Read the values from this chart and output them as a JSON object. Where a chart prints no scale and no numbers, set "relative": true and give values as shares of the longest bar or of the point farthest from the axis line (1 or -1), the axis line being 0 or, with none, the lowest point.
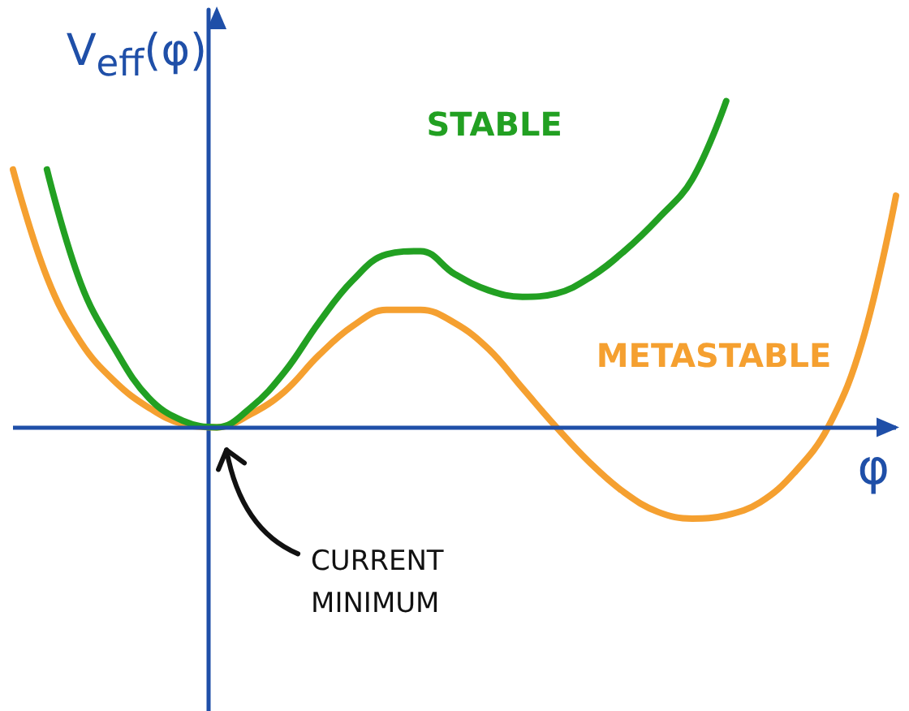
{
  "chart_data": {
    "type": "line",
    "relative": true,
    "xlabel": "φ",
    "ylabel": "V$_{eff}$(φ)",
    "categories": [
      null,
      null,
      null,
      null,
      null,
      null,
      null,
      null,
      null,
      null,
      null,
      null,
      null,
      null,
      null,
      null,
      null,
      null,
      null,
      null,
      null,
      null,
      null,
      null,
      null,
      null,
      null
    ],
    "series": [
      {
        "name": "METASTABLE",
        "color": "#f5a030",
        "values": [
          0.79,
          0.46,
          0.26,
          0.14,
          0.06,
          0.01,
          0,
          0.04,
          0.11,
          0.22,
          0.31,
          0.36,
          0.36,
          0.32,
          0.24,
          0.12,
          0,
          -0.11,
          -0.2,
          -0.26,
          -0.28,
          -0.27,
          -0.23,
          -0.14,
          0,
          0.26,
          0.71
        ]
      },
      {
        "name": "STABLE",
        "color": "#22a022",
        "values": [
          null,
          0.79,
          0.44,
          0.24,
          0.09,
          0.02,
          0,
          0.06,
          0.17,
          0.32,
          0.45,
          0.53,
          0.54,
          0.47,
          0.42,
          0.4,
          0.41,
          0.46,
          0.54,
          0.64,
          0.76,
          1.0,
          null,
          null,
          null,
          null,
          null
        ]
      }
    ],
    "annotations": [
      "CURRENT MINIMUM"
    ],
    "ref_lines": [
      {
        "axis": "y",
        "value": 0,
        "color": "#1f4fa8",
        "line_style": "solid"
      }
    ],
    "grid": false,
    "marker": "none",
    "line_style": "solid"
  }
}
